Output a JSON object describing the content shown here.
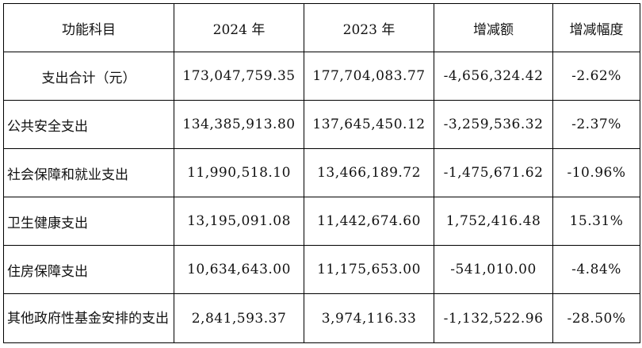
{
  "table": {
    "headers": [
      "功能科目",
      "2024 年",
      "2023 年",
      "增减额",
      "增减幅度"
    ],
    "rows": [
      {
        "category": "支出合计（元）",
        "y2024": "173,047,759.35",
        "y2023": "177,704,083.77",
        "change": "-4,656,324.42",
        "pct": "-2.62%"
      },
      {
        "category": "公共安全支出",
        "y2024": "134,385,913.80",
        "y2023": "137,645,450.12",
        "change": "-3,259,536.32",
        "pct": "-2.37%"
      },
      {
        "category": "社会保障和就业支出",
        "y2024": "11,990,518.10",
        "y2023": "13,466,189.72",
        "change": "-1,475,671.62",
        "pct": "-10.96%"
      },
      {
        "category": "卫生健康支出",
        "y2024": "13,195,091.08",
        "y2023": "11,442,674.60",
        "change": "1,752,416.48",
        "pct": "15.31%"
      },
      {
        "category": "住房保障支出",
        "y2024": "10,634,643.00",
        "y2023": "11,175,653.00",
        "change": "-541,010.00",
        "pct": "-4.84%"
      },
      {
        "category": "其他政府性基金安排的支出",
        "y2024": "2,841,593.37",
        "y2023": "3,974,116.33",
        "change": "-1,132,522.96",
        "pct": "-28.50%"
      }
    ]
  }
}
